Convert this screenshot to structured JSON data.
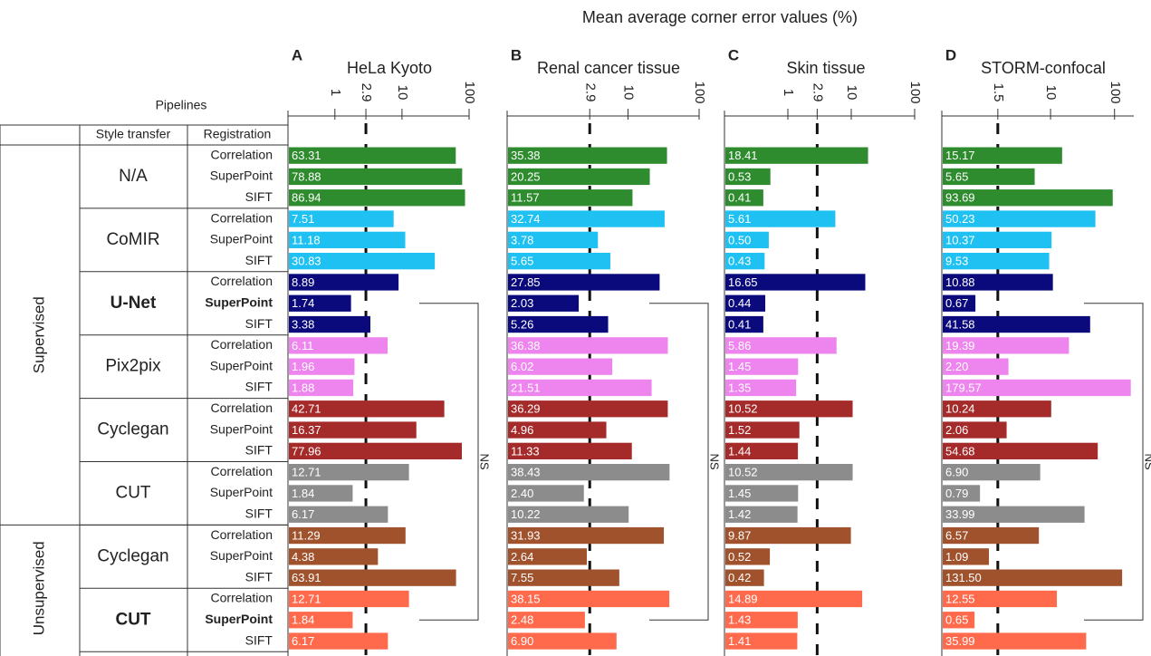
{
  "title": "Mean average corner error values (%)",
  "table": {
    "header": "Pipelines",
    "columns": [
      "Style transfer",
      "Registration"
    ],
    "groups": [
      {
        "label": "Supervised",
        "methods": [
          {
            "name": "N/A",
            "color": "#2e8b2e",
            "registrations": [
              "Correlation",
              "SuperPoint",
              "SIFT"
            ]
          },
          {
            "name": "CoMIR",
            "color": "#1ec1f2",
            "registrations": [
              "Correlation",
              "SuperPoint",
              "SIFT"
            ]
          },
          {
            "name": "U-Net",
            "color": "#0a0a7d",
            "bold": true,
            "registrations": [
              "Correlation",
              "SuperPoint",
              "SIFT"
            ]
          },
          {
            "name": "Pix2pix",
            "color": "#ee84ee",
            "registrations": [
              "Correlation",
              "SuperPoint",
              "SIFT"
            ]
          },
          {
            "name": "Cyclegan",
            "color": "#a52a2a",
            "registrations": [
              "Correlation",
              "SuperPoint",
              "SIFT"
            ]
          },
          {
            "name": "CUT",
            "color": "#8c8c8c",
            "registrations": [
              "Correlation",
              "SuperPoint",
              "SIFT"
            ]
          }
        ]
      },
      {
        "label": "Unsupervised",
        "methods": [
          {
            "name": "Cyclegan",
            "color": "#a0522d",
            "registrations": [
              "Correlation",
              "SuperPoint",
              "SIFT"
            ]
          },
          {
            "name": "CUT",
            "color": "#ff6a4d",
            "bold": true,
            "registrations": [
              "Correlation",
              "SuperPoint",
              "SIFT"
            ]
          }
        ]
      }
    ]
  },
  "chart_data": [
    {
      "type": "bar",
      "letter": "A",
      "title": "HeLa Kyoto",
      "log": true,
      "xlim": [
        0.2,
        100
      ],
      "xticks": [
        1,
        2.9,
        10,
        100
      ],
      "threshold": 2.9,
      "annotation": "NS",
      "values": [
        63.31,
        78.88,
        86.94,
        7.51,
        11.18,
        30.83,
        8.89,
        1.74,
        3.38,
        6.11,
        1.96,
        1.88,
        42.71,
        16.37,
        77.96,
        12.71,
        1.84,
        6.17,
        11.29,
        4.38,
        63.91,
        12.71,
        1.84,
        6.17
      ],
      "value_labels": [
        "63.31",
        "78.88",
        "86.94",
        "7.51",
        "11.18",
        "30.83",
        "8.89",
        "1.74",
        "3.38",
        "6.11",
        "1.96",
        "1.88",
        "42.71",
        "16.37",
        "77.96",
        "12.71",
        "1.84",
        "6.17",
        "11.29",
        "4.38",
        "63.91",
        "12.71",
        "1.84",
        "6.17"
      ]
    },
    {
      "type": "bar",
      "letter": "B",
      "title": "Renal cancer tissue",
      "log": true,
      "xlim": [
        0.2,
        100
      ],
      "xticks": [
        2.9,
        10,
        100
      ],
      "threshold": 2.9,
      "annotation": "NS",
      "values": [
        35.38,
        20.25,
        11.57,
        32.74,
        3.78,
        5.65,
        27.85,
        2.03,
        5.26,
        36.38,
        6.02,
        21.51,
        36.29,
        4.96,
        11.33,
        38.43,
        2.4,
        10.22,
        31.93,
        2.64,
        7.55,
        38.15,
        2.48,
        6.9
      ],
      "value_labels": [
        "35.38",
        "20.25",
        "11.57",
        "32.74",
        "3.78",
        "5.65",
        "27.85",
        "2.03",
        "5.26",
        "36.38",
        "6.02",
        "21.51",
        "36.29",
        "4.96",
        "11.33",
        "38.43",
        "2.40",
        "10.22",
        "31.93",
        "2.64",
        "7.55",
        "38.15",
        "2.48",
        "6.90"
      ]
    },
    {
      "type": "bar",
      "letter": "C",
      "title": "Skin tissue",
      "log": true,
      "xlim": [
        0.1,
        100
      ],
      "xticks": [
        1,
        2.9,
        10,
        100
      ],
      "threshold": 2.9,
      "values": [
        18.41,
        0.53,
        0.41,
        5.61,
        0.5,
        0.43,
        16.65,
        0.44,
        0.41,
        5.86,
        1.45,
        1.35,
        10.52,
        1.52,
        1.44,
        10.52,
        1.45,
        1.42,
        9.87,
        0.52,
        0.42,
        14.89,
        1.43,
        1.41
      ],
      "value_labels": [
        "18.41",
        "0.53",
        "0.41",
        "5.61",
        "0.50",
        "0.43",
        "16.65",
        "0.44",
        "0.41",
        "5.86",
        "1.45",
        "1.35",
        "10.52",
        "1.52",
        "1.44",
        "10.52",
        "1.45",
        "1.42",
        "9.87",
        "0.52",
        "0.42",
        "14.89",
        "1.43",
        "1.41"
      ]
    },
    {
      "type": "bar",
      "letter": "D",
      "title": "STORM-confocal",
      "log": true,
      "xlim": [
        0.2,
        200
      ],
      "xticks": [
        1.5,
        10,
        100
      ],
      "threshold": 1.5,
      "annotation": "NS",
      "values": [
        15.17,
        5.65,
        93.69,
        50.23,
        10.37,
        9.53,
        10.88,
        0.67,
        41.58,
        19.39,
        2.2,
        179.57,
        10.24,
        2.06,
        54.68,
        6.9,
        0.79,
        33.99,
        6.57,
        1.09,
        131.5,
        12.55,
        0.65,
        35.99
      ],
      "value_labels": [
        "15.17",
        "5.65",
        "93.69",
        "50.23",
        "10.37",
        "9.53",
        "10.88",
        "0.67",
        "41.58",
        "19.39",
        "2.20",
        "179.57",
        "10.24",
        "2.06",
        "54.68",
        "6.90",
        "0.79",
        "33.99",
        "6.57",
        "1.09",
        "131.50",
        "12.55",
        "0.65",
        "35.99"
      ]
    }
  ]
}
